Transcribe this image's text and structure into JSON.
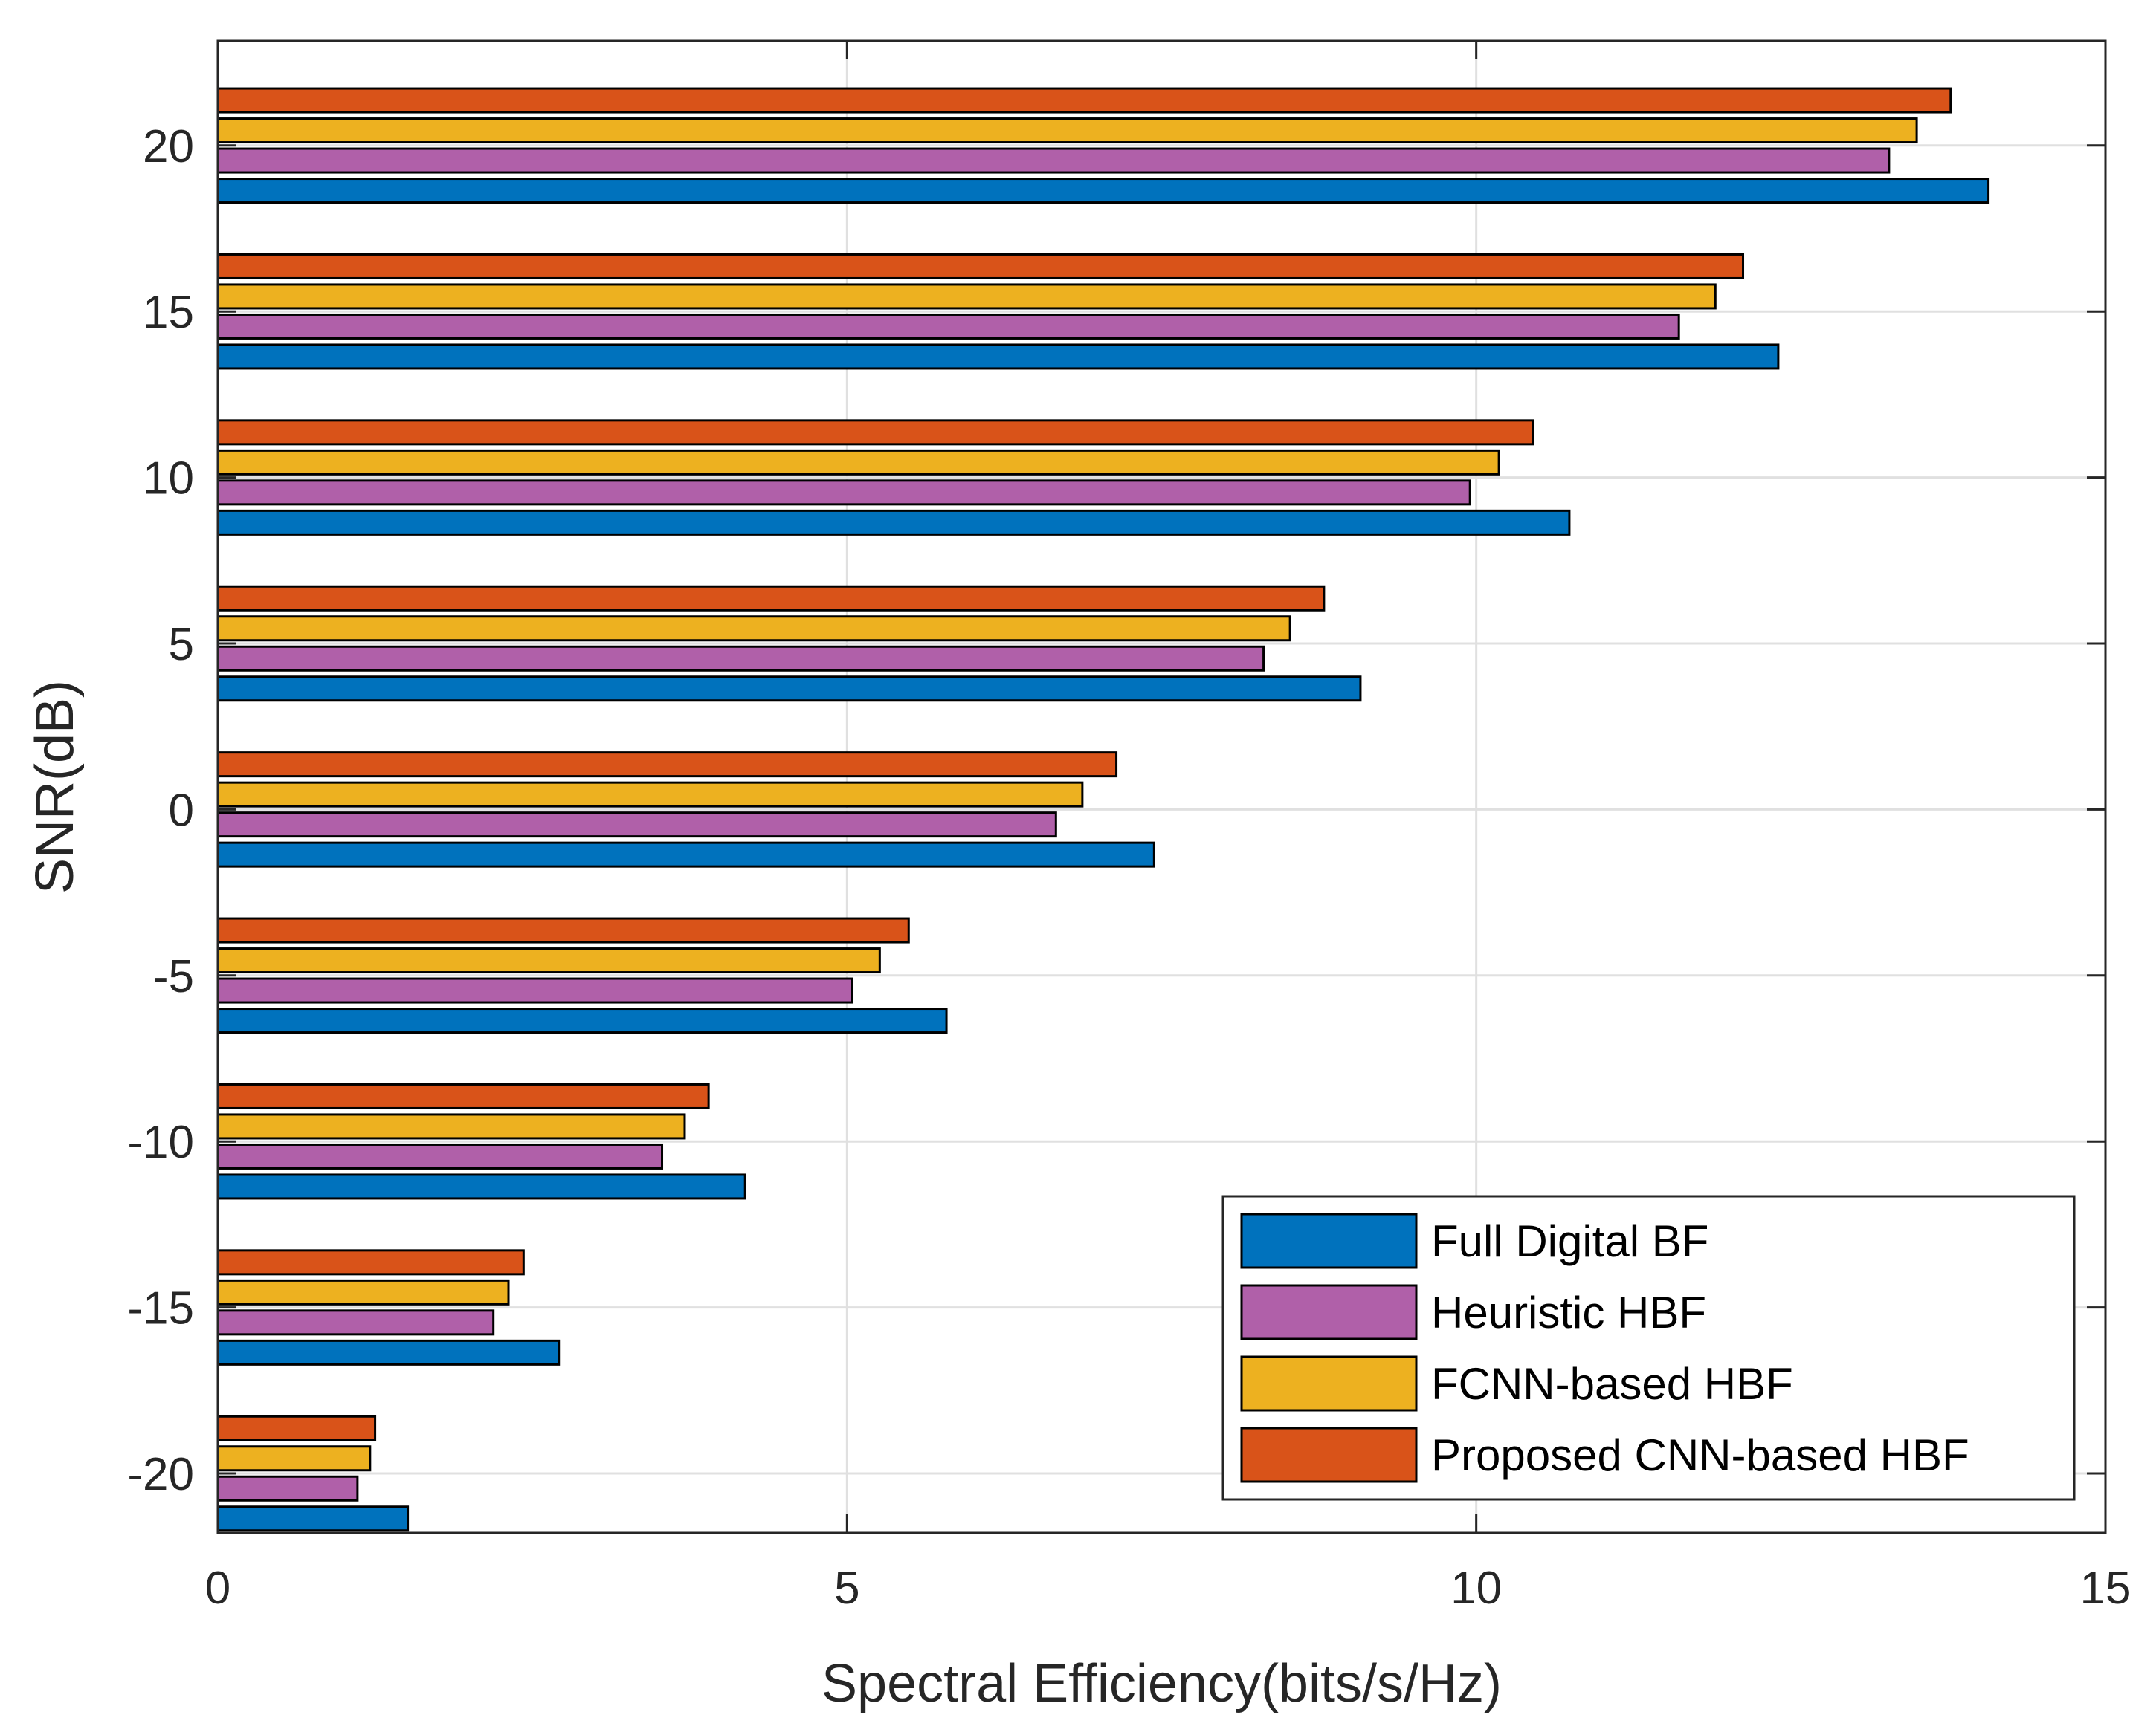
{
  "chart_data": {
    "type": "bar",
    "orientation": "horizontal",
    "title": "",
    "xlabel": "Spectral Efficiency(bits/s/Hz)",
    "ylabel": "SNR(dB)",
    "xlim": [
      0,
      15
    ],
    "xticks": [
      "0",
      "5",
      "10",
      "15"
    ],
    "categories": [
      "-20",
      "-15",
      "-10",
      "-5",
      "0",
      "5",
      "10",
      "15",
      "20"
    ],
    "grid": true,
    "legend_position": "bottom-right",
    "series": [
      {
        "name": "Full Digital BF",
        "color": "#0072BD",
        "values": [
          1.51,
          2.71,
          4.19,
          5.79,
          7.44,
          9.08,
          10.74,
          12.4,
          14.07
        ]
      },
      {
        "name": "Heuristic HBF",
        "color": "#B060A9",
        "values": [
          1.11,
          2.19,
          3.53,
          5.04,
          6.66,
          8.31,
          9.95,
          11.61,
          13.28
        ]
      },
      {
        "name": "FCNN-based HBF",
        "color": "#EDB120",
        "values": [
          1.21,
          2.31,
          3.71,
          5.26,
          6.87,
          8.52,
          10.18,
          11.9,
          13.5
        ]
      },
      {
        "name": "Proposed CNN-based HBF",
        "color": "#D95319",
        "values": [
          1.25,
          2.43,
          3.9,
          5.49,
          7.14,
          8.79,
          10.45,
          12.12,
          13.77
        ]
      }
    ]
  }
}
